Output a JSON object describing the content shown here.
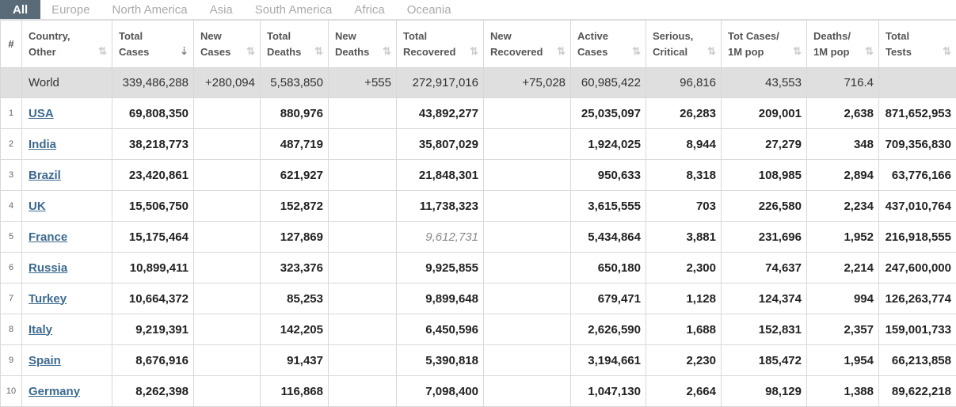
{
  "tabs": [
    "All",
    "Europe",
    "North America",
    "Asia",
    "South America",
    "Africa",
    "Oceania"
  ],
  "columns": [
    [
      "#",
      ""
    ],
    [
      "Country,",
      "Other"
    ],
    [
      "Total",
      "Cases"
    ],
    [
      "New",
      "Cases"
    ],
    [
      "Total",
      "Deaths"
    ],
    [
      "New",
      "Deaths"
    ],
    [
      "Total",
      "Recovered"
    ],
    [
      "New",
      "Recovered"
    ],
    [
      "Active",
      "Cases"
    ],
    [
      "Serious,",
      "Critical"
    ],
    [
      "Tot Cases/",
      "1M pop"
    ],
    [
      "Deaths/",
      "1M pop"
    ],
    [
      "Total",
      "Tests"
    ]
  ],
  "world": [
    "",
    "World",
    "339,486,288",
    "+280,094",
    "5,583,850",
    "+555",
    "272,917,016",
    "+75,028",
    "60,985,422",
    "96,816",
    "43,553",
    "716.4",
    ""
  ],
  "rows": [
    [
      "1",
      "USA",
      "69,808,350",
      "",
      "880,976",
      "",
      "43,892,277",
      "",
      "25,035,097",
      "26,283",
      "209,001",
      "2,638",
      "871,652,953"
    ],
    [
      "2",
      "India",
      "38,218,773",
      "",
      "487,719",
      "",
      "35,807,029",
      "",
      "1,924,025",
      "8,944",
      "27,279",
      "348",
      "709,356,830"
    ],
    [
      "3",
      "Brazil",
      "23,420,861",
      "",
      "621,927",
      "",
      "21,848,301",
      "",
      "950,633",
      "8,318",
      "108,985",
      "2,894",
      "63,776,166"
    ],
    [
      "4",
      "UK",
      "15,506,750",
      "",
      "152,872",
      "",
      "11,738,323",
      "",
      "3,615,555",
      "703",
      "226,580",
      "2,234",
      "437,010,764"
    ],
    [
      "5",
      "France",
      "15,175,464",
      "",
      "127,869",
      "",
      "9,612,731",
      "",
      "5,434,864",
      "3,881",
      "231,696",
      "1,952",
      "216,918,555"
    ],
    [
      "6",
      "Russia",
      "10,899,411",
      "",
      "323,376",
      "",
      "9,925,855",
      "",
      "650,180",
      "2,300",
      "74,637",
      "2,214",
      "247,600,000"
    ],
    [
      "7",
      "Turkey",
      "10,664,372",
      "",
      "85,253",
      "",
      "9,899,648",
      "",
      "679,471",
      "1,128",
      "124,374",
      "994",
      "126,263,774"
    ],
    [
      "8",
      "Italy",
      "9,219,391",
      "",
      "142,205",
      "",
      "6,450,596",
      "",
      "2,626,590",
      "1,688",
      "152,831",
      "2,357",
      "159,001,733"
    ],
    [
      "9",
      "Spain",
      "8,676,916",
      "",
      "91,437",
      "",
      "5,390,818",
      "",
      "3,194,661",
      "2,230",
      "185,472",
      "1,954",
      "66,213,858"
    ],
    [
      "10",
      "Germany",
      "8,262,398",
      "",
      "116,868",
      "",
      "7,098,400",
      "",
      "1,047,130",
      "2,664",
      "98,129",
      "1,388",
      "89,622,218"
    ]
  ],
  "icons": {
    "sort": "sort-arrows-icon",
    "sort_active": "sort-descending-icon"
  }
}
